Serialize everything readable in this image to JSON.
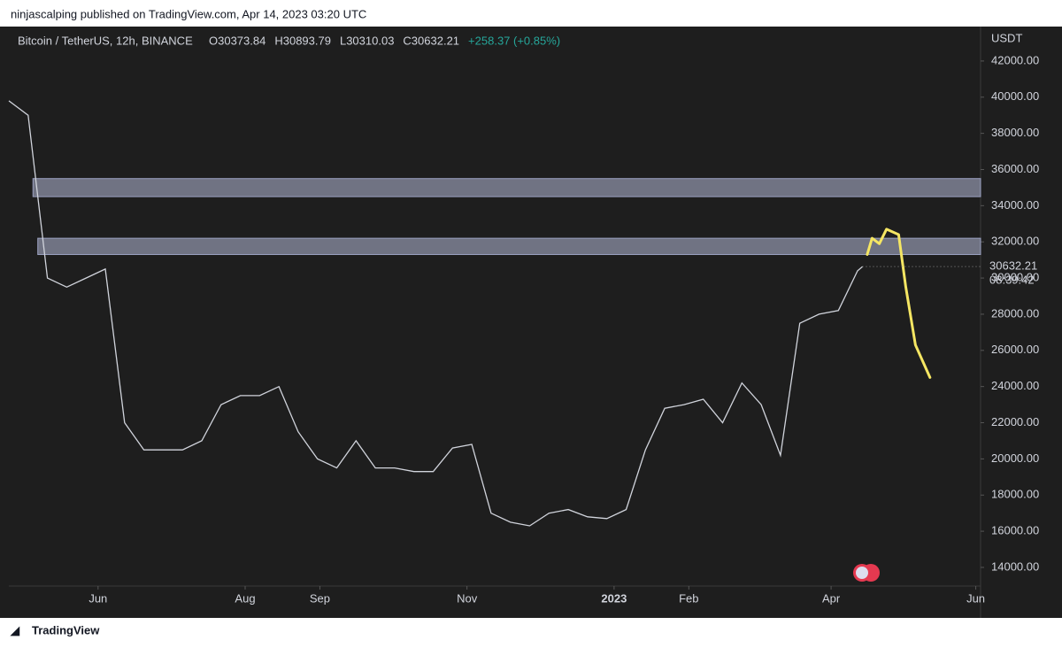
{
  "header": "ninjascalping published on TradingView.com, Apr 14, 2023 03:20 UTC",
  "footer": "TradingView",
  "chart_data": {
    "type": "line",
    "symbol": "Bitcoin / TetherUS, 12h, BINANCE",
    "ohlc_labels": [
      "O30373.84",
      "H30893.79",
      "L30310.03",
      "C30632.21",
      "+258.37 (+0.85%)"
    ],
    "y_unit": "USDT",
    "series": [
      {
        "name": "BTCUSDT",
        "color": "#d1d4dc",
        "x": [
          0,
          8,
          16,
          24,
          32,
          40,
          48,
          56,
          64,
          72,
          80,
          88,
          96,
          104,
          112,
          120,
          128,
          136,
          144,
          152,
          160,
          168,
          176,
          184,
          192,
          200,
          208,
          216,
          224,
          232,
          240,
          248,
          256,
          264,
          272,
          280,
          288,
          296,
          304,
          312,
          320,
          328,
          336,
          344,
          352,
          354
        ],
        "values": [
          39800,
          39000,
          30000,
          29500,
          30000,
          30500,
          22000,
          20500,
          20500,
          20500,
          21000,
          23000,
          23500,
          23500,
          24000,
          21500,
          20000,
          19500,
          21000,
          19500,
          19500,
          19300,
          19300,
          20600,
          20800,
          17000,
          16500,
          16300,
          17000,
          17200,
          16800,
          16700,
          17200,
          20500,
          22800,
          23000,
          23300,
          22000,
          24200,
          23000,
          20200,
          27500,
          28000,
          28200,
          30400,
          30632.21
        ]
      }
    ],
    "projection": {
      "color": "#f5e663",
      "x": [
        356,
        358,
        361,
        364,
        369,
        372,
        376,
        382
      ],
      "values": [
        31300,
        32200,
        31900,
        32700,
        32400,
        29500,
        26300,
        24500
      ]
    },
    "zones": [
      {
        "start": 10,
        "low": 34500,
        "high": 35500
      },
      {
        "start": 12,
        "low": 31300,
        "high": 32200
      }
    ],
    "last_price": 30632.21,
    "countdown": "08:39:42",
    "xlim": [
      0,
      403
    ],
    "xticks": [
      {
        "value": 37,
        "label": "Jun"
      },
      {
        "value": 98,
        "label": "Aug"
      },
      {
        "value": 129,
        "label": "Sep"
      },
      {
        "value": 190,
        "label": "Nov"
      },
      {
        "value": 251,
        "label": "2023"
      },
      {
        "value": 282,
        "label": "Feb"
      },
      {
        "value": 341,
        "label": "Apr"
      },
      {
        "value": 401,
        "label": "Jun"
      }
    ],
    "ylim": [
      12970,
      43660
    ],
    "yticks": [
      {
        "value": 14000,
        "label": "14000.00"
      },
      {
        "value": 16000,
        "label": "16000.00"
      },
      {
        "value": 18000,
        "label": "18000.00"
      },
      {
        "value": 20000,
        "label": "20000.00"
      },
      {
        "value": 22000,
        "label": "22000.00"
      },
      {
        "value": 24000,
        "label": "24000.00"
      },
      {
        "value": 26000,
        "label": "26000.00"
      },
      {
        "value": 28000,
        "label": "28000.00"
      },
      {
        "value": 30000,
        "label": "30000.00"
      },
      {
        "value": 32000,
        "label": "32000.00"
      },
      {
        "value": 34000,
        "label": "34000.00"
      },
      {
        "value": 36000,
        "label": "36000.00"
      },
      {
        "value": 38000,
        "label": "38000.00"
      },
      {
        "value": 40000,
        "label": "40000.00"
      },
      {
        "value": 42000,
        "label": "42000.00"
      }
    ]
  }
}
